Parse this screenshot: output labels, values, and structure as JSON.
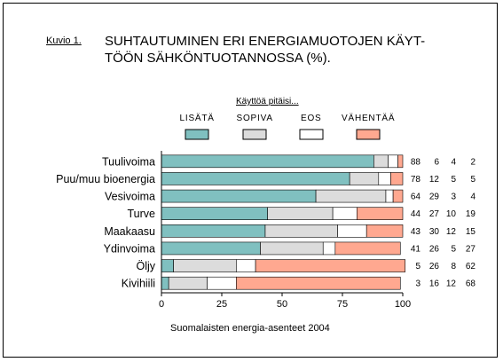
{
  "figure": {
    "label": "Kuvio 1.",
    "title": "SUHTAUTUMINEN ERI ENERGIAMUOTOJEN KÄYT-\nTÖÖN SÄHKÖNTUOTANNOSSA (%).",
    "legend_title": "Käyttöä pitäisi...",
    "footer": "Suomalaisten energia-asenteet 2004"
  },
  "chart_data": {
    "type": "bar",
    "orientation": "horizontal",
    "stacked": true,
    "title": "SUHTAUTUMINEN ERI ENERGIAMUOTOJEN KÄYTTÖÖN SÄHKÖNTUOTANNOSSA (%).",
    "categories": [
      "Tuulivoima",
      "Puu/muu bioenergia",
      "Vesivoima",
      "Turve",
      "Maakaasu",
      "Ydinvoima",
      "Öljy",
      "Kivihiili"
    ],
    "series": [
      {
        "name": "LISÄTÄ",
        "color": "#80c0c0",
        "values": [
          88,
          78,
          64,
          44,
          43,
          41,
          5,
          3
        ]
      },
      {
        "name": "SOPIVA",
        "color": "#dcdcdc",
        "values": [
          6,
          12,
          29,
          27,
          30,
          26,
          26,
          16
        ]
      },
      {
        "name": "EOS",
        "color": "#ffffff",
        "values": [
          4,
          5,
          3,
          10,
          12,
          5,
          8,
          12
        ]
      },
      {
        "name": "VÄHENTÄÄ",
        "color": "#ffa890",
        "values": [
          2,
          5,
          4,
          19,
          15,
          27,
          62,
          68
        ]
      }
    ],
    "xlim": [
      0,
      100
    ],
    "xticks": [
      0,
      25,
      50,
      75,
      100
    ],
    "legend_position": "top"
  }
}
